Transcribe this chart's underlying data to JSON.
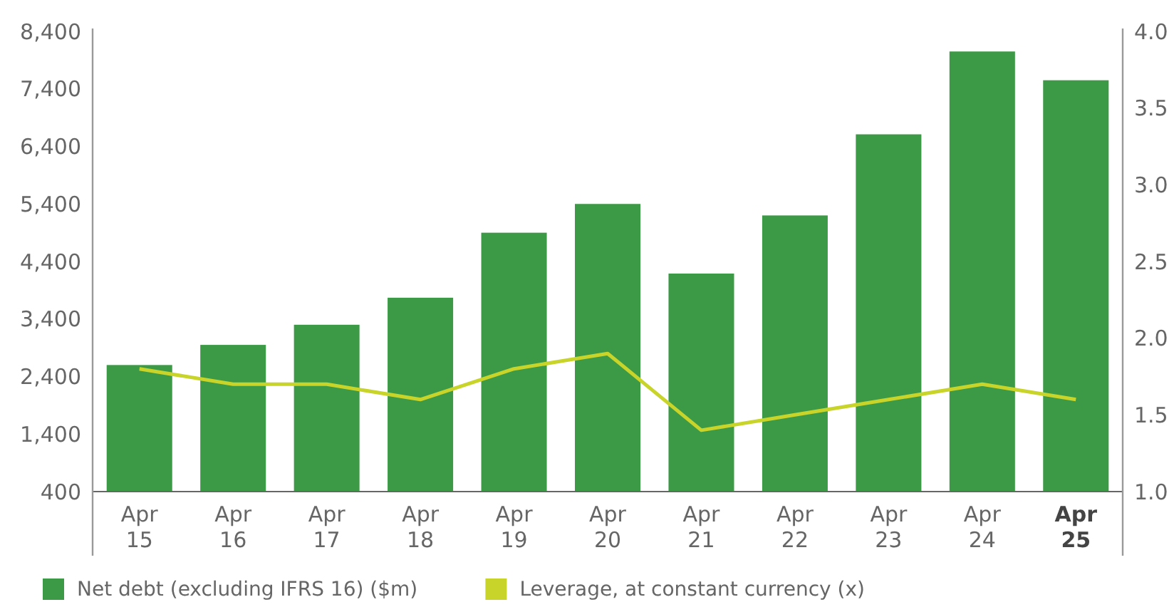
{
  "chart_data": {
    "type": "bar",
    "categories": [
      "Apr 15",
      "Apr 16",
      "Apr 17",
      "Apr 18",
      "Apr 19",
      "Apr 20",
      "Apr 21",
      "Apr 22",
      "Apr 23",
      "Apr 24",
      "Apr 25"
    ],
    "series": [
      {
        "name": "Net debt (excluding IFRS 16) ($m)",
        "color": "#3c9a46",
        "values": [
          2600,
          2950,
          3300,
          3770,
          4900,
          5400,
          4190,
          5200,
          6610,
          8050,
          7550
        ]
      },
      {
        "name": "Leverage, at constant currency (x)",
        "type": "line",
        "axis": "y2",
        "color": "#c8d42a",
        "values": [
          1.8,
          1.7,
          1.7,
          1.6,
          1.8,
          1.9,
          1.4,
          1.5,
          1.6,
          1.7,
          1.6
        ]
      }
    ],
    "ylim": [
      400,
      8400
    ],
    "yticks": [
      {
        "value": 400,
        "label": "400"
      },
      {
        "value": 1400,
        "label": "1,400"
      },
      {
        "value": 2400,
        "label": "2,400"
      },
      {
        "value": 3400,
        "label": "3,400"
      },
      {
        "value": 4400,
        "label": "4,400"
      },
      {
        "value": 5400,
        "label": "5,400"
      },
      {
        "value": 6400,
        "label": "6,400"
      },
      {
        "value": 7400,
        "label": "7,400"
      },
      {
        "value": 8400,
        "label": "8,400"
      }
    ],
    "y2lim": [
      1.0,
      4.0
    ],
    "y2ticks": [
      {
        "value": 1,
        "label": "1.0"
      },
      {
        "value": 1.5,
        "label": "1.5"
      },
      {
        "value": 2,
        "label": "2.0"
      },
      {
        "value": 2.5,
        "label": "2.5"
      },
      {
        "value": 3,
        "label": "3.0"
      },
      {
        "value": 3.5,
        "label": "3.5"
      },
      {
        "value": 4,
        "label": "4.0"
      }
    ],
    "grid": false,
    "legend": "bottom left",
    "line_style": "solid",
    "marker": "none"
  }
}
